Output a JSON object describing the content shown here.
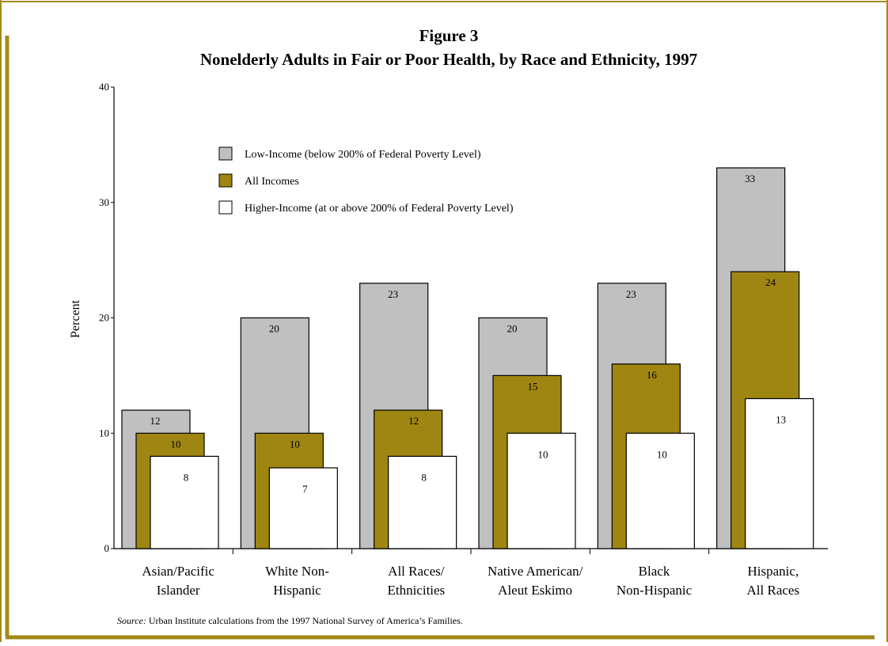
{
  "frame": {
    "border_color": "#a18a1a"
  },
  "chart_data": {
    "type": "bar",
    "title": "Figure 3",
    "subtitle": "Nonelderly Adults in Fair or Poor Health, by Race and Ethnicity, 1997",
    "xlabel": "",
    "ylabel": "Percent",
    "ylim": [
      0,
      40
    ],
    "yticks": [
      "0",
      "10",
      "20",
      "30",
      "40"
    ],
    "grid": false,
    "legend_position": "top-center",
    "categories": [
      [
        "Asian/Pacific",
        "Islander"
      ],
      [
        "White Non-",
        "Hispanic"
      ],
      [
        "All Races/",
        "Ethnicities"
      ],
      [
        "Native American/",
        "Aleut Eskimo"
      ],
      [
        "Black",
        "Non-Hispanic"
      ],
      [
        "Hispanic,",
        "All Races"
      ]
    ],
    "series": [
      {
        "name": "Low-Income (below 200% of Federal Poverty Level)",
        "color": "#c0c0c0",
        "values": [
          12,
          20,
          23,
          20,
          23,
          33
        ]
      },
      {
        "name": "All Incomes",
        "color": "#9f8612",
        "values": [
          10,
          10,
          12,
          15,
          16,
          24
        ]
      },
      {
        "name": "Higher-Income (at or above 200% of Federal Poverty Level)",
        "color": "#ffffff",
        "values": [
          8,
          7,
          8,
          10,
          10,
          13
        ]
      }
    ],
    "source_label": "Source:",
    "source_text": " Urban Institute calculations from the 1997 National Survey of America’s Families."
  }
}
